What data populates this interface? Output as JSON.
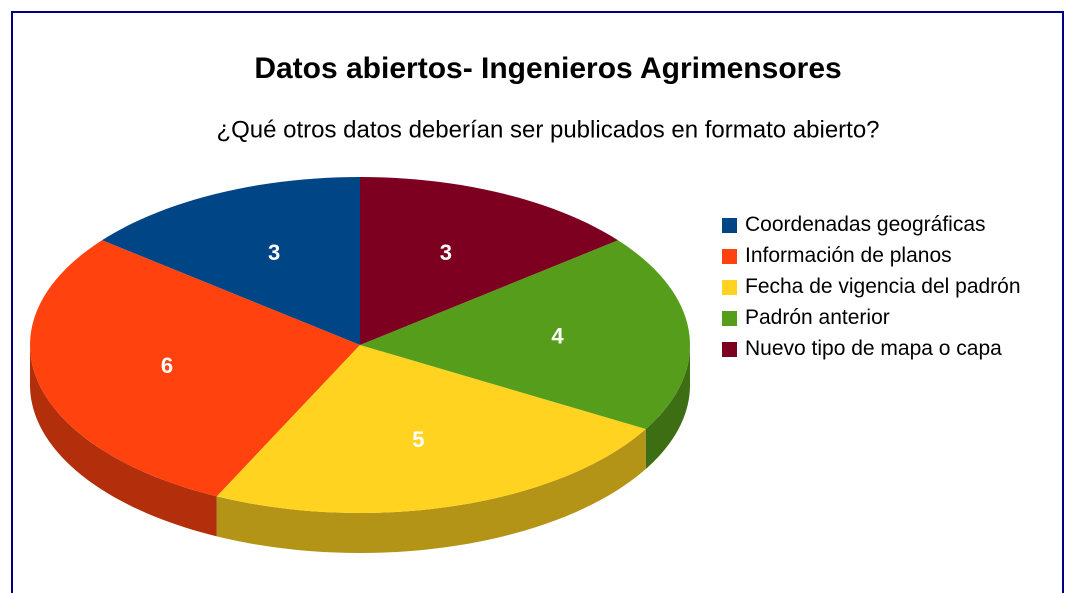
{
  "chart_data": {
    "type": "pie",
    "title": "Datos abiertos- Ingenieros Agrimensores",
    "subtitle": "¿Qué otros datos deberían ser publicados en formato abierto?",
    "categories": [
      "Coordenadas geográficas",
      "Información de planos",
      "Fecha de vigencia del padrón",
      "Padrón anterior",
      "Nuevo tipo de mapa o capa"
    ],
    "values": [
      3,
      6,
      5,
      4,
      3
    ],
    "colors": [
      "#004586",
      "#ff420e",
      "#ffd320",
      "#579d1c",
      "#7e0021"
    ],
    "legend": "right"
  }
}
